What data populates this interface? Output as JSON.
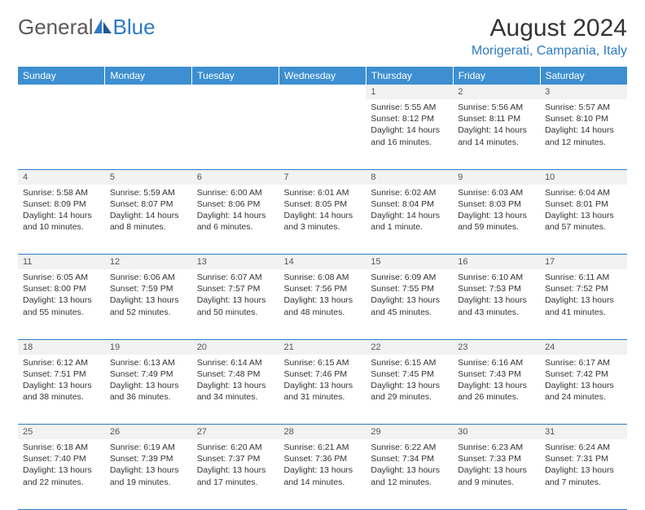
{
  "logo": {
    "text_gray": "General",
    "text_blue": "Blue",
    "icon_color": "#2d7bc3"
  },
  "title": "August 2024",
  "location": "Morigerati, Campania, Italy",
  "colors": {
    "header_bg": "#3d8fd1",
    "header_text": "#ffffff",
    "daynum_bg": "#f2f2f2",
    "row_border": "#2d7bc3",
    "location_color": "#2d7bc3",
    "body_text": "#333333"
  },
  "day_headers": [
    "Sunday",
    "Monday",
    "Tuesday",
    "Wednesday",
    "Thursday",
    "Friday",
    "Saturday"
  ],
  "weeks": [
    [
      {
        "num": "",
        "sunrise": "",
        "sunset": "",
        "daylight": ""
      },
      {
        "num": "",
        "sunrise": "",
        "sunset": "",
        "daylight": ""
      },
      {
        "num": "",
        "sunrise": "",
        "sunset": "",
        "daylight": ""
      },
      {
        "num": "",
        "sunrise": "",
        "sunset": "",
        "daylight": ""
      },
      {
        "num": "1",
        "sunrise": "Sunrise: 5:55 AM",
        "sunset": "Sunset: 8:12 PM",
        "daylight": "Daylight: 14 hours and 16 minutes."
      },
      {
        "num": "2",
        "sunrise": "Sunrise: 5:56 AM",
        "sunset": "Sunset: 8:11 PM",
        "daylight": "Daylight: 14 hours and 14 minutes."
      },
      {
        "num": "3",
        "sunrise": "Sunrise: 5:57 AM",
        "sunset": "Sunset: 8:10 PM",
        "daylight": "Daylight: 14 hours and 12 minutes."
      }
    ],
    [
      {
        "num": "4",
        "sunrise": "Sunrise: 5:58 AM",
        "sunset": "Sunset: 8:09 PM",
        "daylight": "Daylight: 14 hours and 10 minutes."
      },
      {
        "num": "5",
        "sunrise": "Sunrise: 5:59 AM",
        "sunset": "Sunset: 8:07 PM",
        "daylight": "Daylight: 14 hours and 8 minutes."
      },
      {
        "num": "6",
        "sunrise": "Sunrise: 6:00 AM",
        "sunset": "Sunset: 8:06 PM",
        "daylight": "Daylight: 14 hours and 6 minutes."
      },
      {
        "num": "7",
        "sunrise": "Sunrise: 6:01 AM",
        "sunset": "Sunset: 8:05 PM",
        "daylight": "Daylight: 14 hours and 3 minutes."
      },
      {
        "num": "8",
        "sunrise": "Sunrise: 6:02 AM",
        "sunset": "Sunset: 8:04 PM",
        "daylight": "Daylight: 14 hours and 1 minute."
      },
      {
        "num": "9",
        "sunrise": "Sunrise: 6:03 AM",
        "sunset": "Sunset: 8:03 PM",
        "daylight": "Daylight: 13 hours and 59 minutes."
      },
      {
        "num": "10",
        "sunrise": "Sunrise: 6:04 AM",
        "sunset": "Sunset: 8:01 PM",
        "daylight": "Daylight: 13 hours and 57 minutes."
      }
    ],
    [
      {
        "num": "11",
        "sunrise": "Sunrise: 6:05 AM",
        "sunset": "Sunset: 8:00 PM",
        "daylight": "Daylight: 13 hours and 55 minutes."
      },
      {
        "num": "12",
        "sunrise": "Sunrise: 6:06 AM",
        "sunset": "Sunset: 7:59 PM",
        "daylight": "Daylight: 13 hours and 52 minutes."
      },
      {
        "num": "13",
        "sunrise": "Sunrise: 6:07 AM",
        "sunset": "Sunset: 7:57 PM",
        "daylight": "Daylight: 13 hours and 50 minutes."
      },
      {
        "num": "14",
        "sunrise": "Sunrise: 6:08 AM",
        "sunset": "Sunset: 7:56 PM",
        "daylight": "Daylight: 13 hours and 48 minutes."
      },
      {
        "num": "15",
        "sunrise": "Sunrise: 6:09 AM",
        "sunset": "Sunset: 7:55 PM",
        "daylight": "Daylight: 13 hours and 45 minutes."
      },
      {
        "num": "16",
        "sunrise": "Sunrise: 6:10 AM",
        "sunset": "Sunset: 7:53 PM",
        "daylight": "Daylight: 13 hours and 43 minutes."
      },
      {
        "num": "17",
        "sunrise": "Sunrise: 6:11 AM",
        "sunset": "Sunset: 7:52 PM",
        "daylight": "Daylight: 13 hours and 41 minutes."
      }
    ],
    [
      {
        "num": "18",
        "sunrise": "Sunrise: 6:12 AM",
        "sunset": "Sunset: 7:51 PM",
        "daylight": "Daylight: 13 hours and 38 minutes."
      },
      {
        "num": "19",
        "sunrise": "Sunrise: 6:13 AM",
        "sunset": "Sunset: 7:49 PM",
        "daylight": "Daylight: 13 hours and 36 minutes."
      },
      {
        "num": "20",
        "sunrise": "Sunrise: 6:14 AM",
        "sunset": "Sunset: 7:48 PM",
        "daylight": "Daylight: 13 hours and 34 minutes."
      },
      {
        "num": "21",
        "sunrise": "Sunrise: 6:15 AM",
        "sunset": "Sunset: 7:46 PM",
        "daylight": "Daylight: 13 hours and 31 minutes."
      },
      {
        "num": "22",
        "sunrise": "Sunrise: 6:15 AM",
        "sunset": "Sunset: 7:45 PM",
        "daylight": "Daylight: 13 hours and 29 minutes."
      },
      {
        "num": "23",
        "sunrise": "Sunrise: 6:16 AM",
        "sunset": "Sunset: 7:43 PM",
        "daylight": "Daylight: 13 hours and 26 minutes."
      },
      {
        "num": "24",
        "sunrise": "Sunrise: 6:17 AM",
        "sunset": "Sunset: 7:42 PM",
        "daylight": "Daylight: 13 hours and 24 minutes."
      }
    ],
    [
      {
        "num": "25",
        "sunrise": "Sunrise: 6:18 AM",
        "sunset": "Sunset: 7:40 PM",
        "daylight": "Daylight: 13 hours and 22 minutes."
      },
      {
        "num": "26",
        "sunrise": "Sunrise: 6:19 AM",
        "sunset": "Sunset: 7:39 PM",
        "daylight": "Daylight: 13 hours and 19 minutes."
      },
      {
        "num": "27",
        "sunrise": "Sunrise: 6:20 AM",
        "sunset": "Sunset: 7:37 PM",
        "daylight": "Daylight: 13 hours and 17 minutes."
      },
      {
        "num": "28",
        "sunrise": "Sunrise: 6:21 AM",
        "sunset": "Sunset: 7:36 PM",
        "daylight": "Daylight: 13 hours and 14 minutes."
      },
      {
        "num": "29",
        "sunrise": "Sunrise: 6:22 AM",
        "sunset": "Sunset: 7:34 PM",
        "daylight": "Daylight: 13 hours and 12 minutes."
      },
      {
        "num": "30",
        "sunrise": "Sunrise: 6:23 AM",
        "sunset": "Sunset: 7:33 PM",
        "daylight": "Daylight: 13 hours and 9 minutes."
      },
      {
        "num": "31",
        "sunrise": "Sunrise: 6:24 AM",
        "sunset": "Sunset: 7:31 PM",
        "daylight": "Daylight: 13 hours and 7 minutes."
      }
    ]
  ]
}
